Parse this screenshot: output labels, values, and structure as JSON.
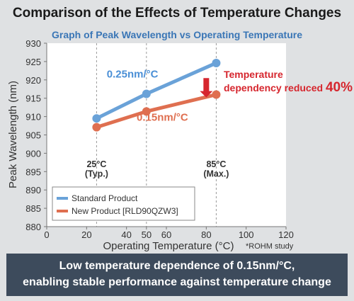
{
  "header": {
    "title": "Comparison of the Effects of Temperature Changes",
    "chart_title": "Graph of Peak Wavelength vs Operating Temperature"
  },
  "chart_data": {
    "type": "line",
    "title": "Graph of Peak Wavelength vs Operating Temperature",
    "xlabel": "Operating Temperature (°C)",
    "ylabel": "Peak Wavelength (nm)",
    "xlim": [
      0,
      120
    ],
    "ylim": [
      880,
      930
    ],
    "xticks": [
      0,
      20,
      40,
      50,
      60,
      80,
      100,
      120
    ],
    "yticks": [
      880,
      885,
      890,
      895,
      900,
      905,
      910,
      915,
      920,
      925,
      930
    ],
    "grid": false,
    "legend_position": "bottom-left",
    "series": [
      {
        "name": "Standard Product",
        "color": "#6aa2d8",
        "x": [
          25,
          50,
          85
        ],
        "y": [
          909.5,
          916.2,
          924.6
        ]
      },
      {
        "name": "New Product [RLD90QZW3]",
        "color": "#df6f50",
        "x": [
          25,
          50,
          85
        ],
        "y": [
          907.1,
          911.4,
          916.0
        ]
      }
    ],
    "reference_lines": [
      {
        "x": 25,
        "label_line1": "25°C",
        "label_line2": "(Typ.)"
      },
      {
        "x": 50,
        "label_line1": "",
        "label_line2": ""
      },
      {
        "x": 85,
        "label_line1": "85°C",
        "label_line2": "(Max.)"
      }
    ],
    "annotations": {
      "slope_standard": {
        "text": "0.25nm/°C",
        "color": "#4a8fd6",
        "x": 43,
        "y": 920.6
      },
      "slope_new": {
        "text": "0.15nm/°C",
        "color": "#df6f50",
        "x": 58,
        "y": 908.9
      },
      "reduction_line1": "Temperature",
      "reduction_line2": "dependency reduced",
      "reduction_value": "40%",
      "reduction_color": "#d6262e"
    }
  },
  "footnote": "*ROHM study",
  "summary": {
    "line1": "Low temperature dependence of 0.15nm/°C,",
    "line2": "enabling stable performance against temperature change"
  }
}
